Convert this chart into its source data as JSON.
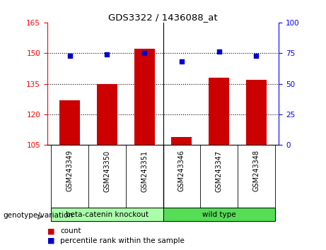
{
  "title": "GDS3322 / 1436088_at",
  "categories": [
    "GSM243349",
    "GSM243350",
    "GSM243351",
    "GSM243346",
    "GSM243347",
    "GSM243348"
  ],
  "bar_values": [
    127,
    135,
    152,
    109,
    138,
    137
  ],
  "scatter_values": [
    73,
    74,
    75,
    68,
    76,
    73
  ],
  "ylim_left": [
    105,
    165
  ],
  "ylim_right": [
    0,
    100
  ],
  "yticks_left": [
    105,
    120,
    135,
    150,
    165
  ],
  "yticks_right": [
    0,
    25,
    50,
    75,
    100
  ],
  "bar_color": "#cc0000",
  "scatter_color": "#0000cc",
  "bg_plot": "#ffffff",
  "group1_label": "beta-catenin knockout",
  "group2_label": "wild type",
  "group1_color": "#aaffaa",
  "group2_color": "#55dd55",
  "genotype_label": "genotype/variation",
  "legend_count": "count",
  "legend_percentile": "percentile rank within the sample",
  "bar_width": 0.55,
  "grid_ticks": [
    120,
    135,
    150
  ],
  "sep_x": 2.5,
  "xlim": [
    -0.6,
    5.6
  ]
}
